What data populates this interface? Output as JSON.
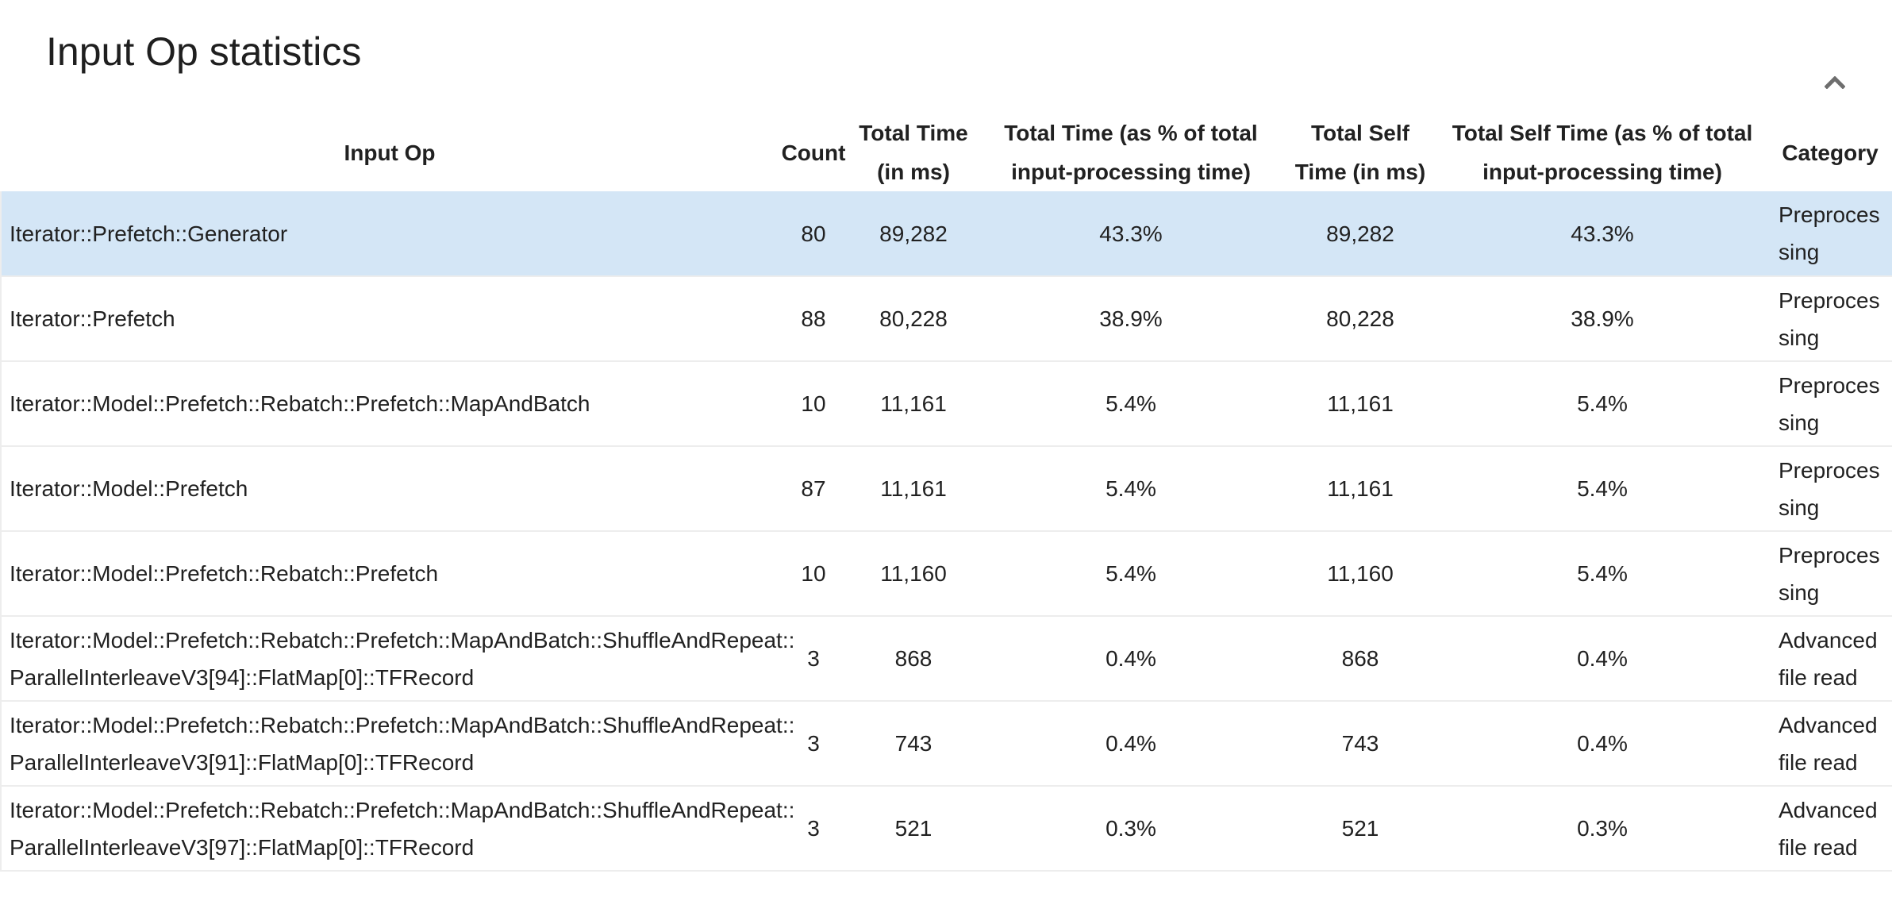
{
  "panel": {
    "title": "Input Op statistics",
    "collapse_icon": "chevron-up-icon",
    "collapse_icon_color": "#6e6e6e"
  },
  "table": {
    "selected_row_color": "#d4e6f6",
    "text_color": "#212121",
    "separator_color": "#ededed",
    "columns": [
      {
        "key": "op",
        "label": "Input Op"
      },
      {
        "key": "count",
        "label": "Count"
      },
      {
        "key": "total_time",
        "label": "Total Time\n(in ms)"
      },
      {
        "key": "total_time_pct",
        "label": "Total Time (as % of total\ninput-processing time)"
      },
      {
        "key": "self_time",
        "label": "Total Self\nTime (in ms)"
      },
      {
        "key": "self_time_pct",
        "label": "Total Self Time (as % of total\ninput-processing time)"
      },
      {
        "key": "category",
        "label": "Category"
      }
    ],
    "rows": [
      {
        "selected": true,
        "op": "Iterator::Prefetch::Generator",
        "count": "80",
        "total_time": "89,282",
        "total_time_pct": "43.3%",
        "self_time": "89,282",
        "self_time_pct": "43.3%",
        "category": "Preprocessing"
      },
      {
        "selected": false,
        "op": "Iterator::Prefetch",
        "count": "88",
        "total_time": "80,228",
        "total_time_pct": "38.9%",
        "self_time": "80,228",
        "self_time_pct": "38.9%",
        "category": "Preprocessing"
      },
      {
        "selected": false,
        "op": "Iterator::Model::Prefetch::Rebatch::Prefetch::MapAndBatch",
        "count": "10",
        "total_time": "11,161",
        "total_time_pct": "5.4%",
        "self_time": "11,161",
        "self_time_pct": "5.4%",
        "category": "Preprocessing"
      },
      {
        "selected": false,
        "op": "Iterator::Model::Prefetch",
        "count": "87",
        "total_time": "11,161",
        "total_time_pct": "5.4%",
        "self_time": "11,161",
        "self_time_pct": "5.4%",
        "category": "Preprocessing"
      },
      {
        "selected": false,
        "op": "Iterator::Model::Prefetch::Rebatch::Prefetch",
        "count": "10",
        "total_time": "11,160",
        "total_time_pct": "5.4%",
        "self_time": "11,160",
        "self_time_pct": "5.4%",
        "category": "Preprocessing"
      },
      {
        "selected": false,
        "op": "Iterator::Model::Prefetch::Rebatch::Prefetch::MapAndBatch::ShuffleAndRepeat::\nParallelInterleaveV3[94]::FlatMap[0]::TFRecord",
        "count": "3",
        "total_time": "868",
        "total_time_pct": "0.4%",
        "self_time": "868",
        "self_time_pct": "0.4%",
        "category": "Advanced file read"
      },
      {
        "selected": false,
        "op": "Iterator::Model::Prefetch::Rebatch::Prefetch::MapAndBatch::ShuffleAndRepeat::\nParallelInterleaveV3[91]::FlatMap[0]::TFRecord",
        "count": "3",
        "total_time": "743",
        "total_time_pct": "0.4%",
        "self_time": "743",
        "self_time_pct": "0.4%",
        "category": "Advanced file read"
      },
      {
        "selected": false,
        "op": "Iterator::Model::Prefetch::Rebatch::Prefetch::MapAndBatch::ShuffleAndRepeat::\nParallelInterleaveV3[97]::FlatMap[0]::TFRecord",
        "count": "3",
        "total_time": "521",
        "total_time_pct": "0.3%",
        "self_time": "521",
        "self_time_pct": "0.3%",
        "category": "Advanced file read"
      }
    ]
  }
}
